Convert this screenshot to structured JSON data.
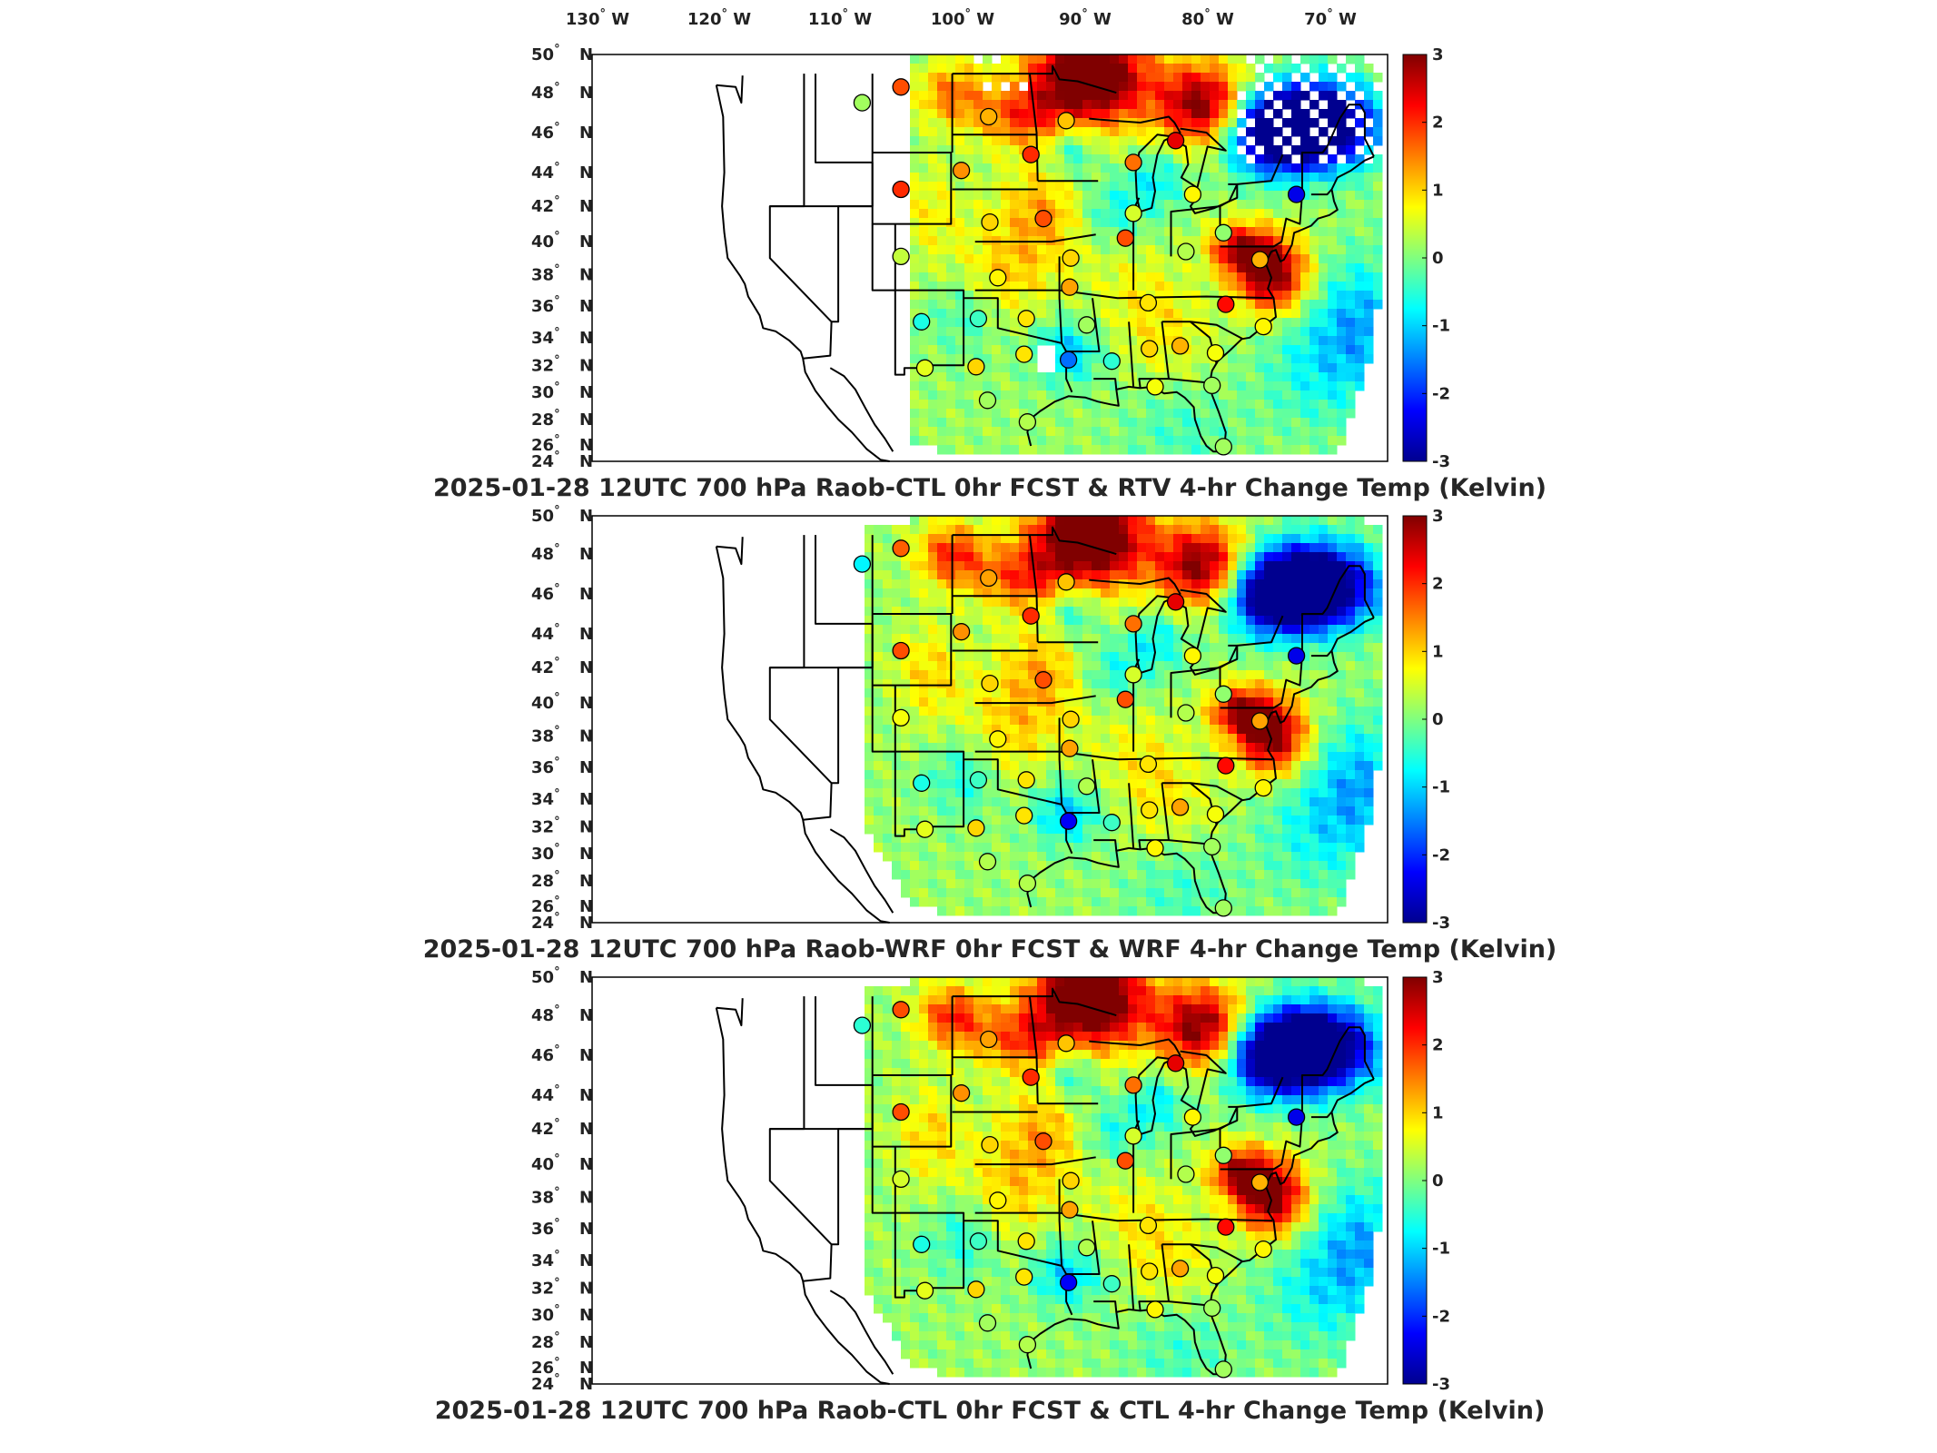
{
  "lon_labels": [
    "130",
    "120",
    "110",
    "100",
    "90",
    "80",
    "70"
  ],
  "lon_hemisphere": "W",
  "lat_labels": [
    "50",
    "48",
    "46",
    "44",
    "42",
    "40",
    "38",
    "36",
    "34",
    "32",
    "30",
    "28",
    "26",
    "24"
  ],
  "lat_hemisphere": "N",
  "degree_symbol": "°",
  "colorbar": {
    "min": -3,
    "max": 3,
    "ticks": [
      "3",
      "2",
      "1",
      "0",
      "-1",
      "-2",
      "-3"
    ],
    "colormap": "jet",
    "colors": [
      "#00008f",
      "#0000ff",
      "#00ffff",
      "#ffff00",
      "#ff0000",
      "#800000"
    ]
  },
  "colors": {
    "coastline": "#000000",
    "frame": "#000000",
    "station_outline": "#000000",
    "missing_data": "#ffffff"
  },
  "panels": [
    {
      "title": "2025-01-28 12UTC 700 hPa Raob-CTL 0hr FCST & RTV 4-hr Change Temp (Kelvin)",
      "field_source": "RTV"
    },
    {
      "title": "2025-01-28 12UTC 700 hPa Raob-WRF 0hr FCST & WRF 4-hr Change Temp (Kelvin)",
      "field_source": "WRF"
    },
    {
      "title": "2025-01-28 12UTC 700 hPa Raob-CTL 0hr FCST & CTL 4-hr Change Temp (Kelvin)",
      "field_source": "CTL"
    }
  ],
  "stations": [
    {
      "lon": -111.9,
      "lat": 47.5,
      "value": [
        0.2,
        -0.8,
        -0.5
      ]
    },
    {
      "lon": -108.5,
      "lat": 48.3,
      "value": [
        1.8,
        1.7,
        1.8
      ]
    },
    {
      "lon": -108.5,
      "lat": 43.0,
      "value": [
        2.0,
        1.8,
        1.8
      ]
    },
    {
      "lon": -108.5,
      "lat": 39.1,
      "value": [
        0.4,
        0.7,
        0.5
      ]
    },
    {
      "lon": -106.7,
      "lat": 35.0,
      "value": [
        -0.6,
        -0.6,
        -0.6
      ]
    },
    {
      "lon": -106.4,
      "lat": 31.8,
      "value": [
        0.6,
        0.6,
        0.6
      ]
    },
    {
      "lon": -100.8,
      "lat": 46.8,
      "value": [
        1.2,
        1.3,
        1.3
      ]
    },
    {
      "lon": -103.2,
      "lat": 44.1,
      "value": [
        1.4,
        1.4,
        1.4
      ]
    },
    {
      "lon": -100.7,
      "lat": 41.1,
      "value": [
        1.0,
        1.0,
        1.0
      ]
    },
    {
      "lon": -100.0,
      "lat": 37.8,
      "value": [
        0.8,
        0.8,
        0.8
      ]
    },
    {
      "lon": -101.7,
      "lat": 35.2,
      "value": [
        -0.4,
        -0.4,
        -0.4
      ]
    },
    {
      "lon": -101.9,
      "lat": 31.9,
      "value": [
        1.0,
        1.0,
        1.0
      ]
    },
    {
      "lon": -97.7,
      "lat": 32.8,
      "value": [
        0.9,
        0.9,
        0.9
      ]
    },
    {
      "lon": -97.5,
      "lat": 35.2,
      "value": [
        0.9,
        0.9,
        0.9
      ]
    },
    {
      "lon": -100.9,
      "lat": 29.4,
      "value": [
        0.2,
        0.3,
        0.2
      ]
    },
    {
      "lon": -97.4,
      "lat": 27.8,
      "value": [
        0.3,
        0.3,
        0.3
      ]
    },
    {
      "lon": -97.1,
      "lat": 44.9,
      "value": [
        2.0,
        2.0,
        2.0
      ]
    },
    {
      "lon": -96.0,
      "lat": 41.3,
      "value": [
        1.8,
        1.8,
        1.8
      ]
    },
    {
      "lon": -94.0,
      "lat": 46.6,
      "value": [
        1.1,
        1.1,
        1.1
      ]
    },
    {
      "lon": -93.6,
      "lat": 39.0,
      "value": [
        1.0,
        1.0,
        1.0
      ]
    },
    {
      "lon": -92.2,
      "lat": 34.8,
      "value": [
        0.2,
        0.3,
        0.3
      ]
    },
    {
      "lon": -93.7,
      "lat": 37.2,
      "value": [
        1.3,
        1.3,
        1.3
      ]
    },
    {
      "lon": -93.8,
      "lat": 32.4,
      "value": [
        -1.6,
        -2.3,
        -2.3
      ]
    },
    {
      "lon": -90.0,
      "lat": 32.3,
      "value": [
        -0.5,
        -0.4,
        -0.4
      ]
    },
    {
      "lon": -88.1,
      "lat": 41.6,
      "value": [
        0.5,
        0.5,
        0.5
      ]
    },
    {
      "lon": -88.8,
      "lat": 40.2,
      "value": [
        1.8,
        1.8,
        1.8
      ]
    },
    {
      "lon": -88.1,
      "lat": 44.5,
      "value": [
        1.6,
        1.6,
        1.6
      ]
    },
    {
      "lon": -86.8,
      "lat": 36.2,
      "value": [
        0.9,
        0.9,
        0.9
      ]
    },
    {
      "lon": -86.7,
      "lat": 33.2,
      "value": [
        1.0,
        0.9,
        0.9
      ]
    },
    {
      "lon": -86.2,
      "lat": 30.4,
      "value": [
        0.7,
        0.8,
        0.8
      ]
    },
    {
      "lon": -84.0,
      "lat": 33.4,
      "value": [
        1.2,
        1.3,
        1.3
      ]
    },
    {
      "lon": -83.5,
      "lat": 39.4,
      "value": [
        0.3,
        0.3,
        0.3
      ]
    },
    {
      "lon": -84.4,
      "lat": 45.6,
      "value": [
        2.4,
        2.4,
        2.4
      ]
    },
    {
      "lon": -82.9,
      "lat": 42.7,
      "value": [
        0.8,
        0.8,
        0.8
      ]
    },
    {
      "lon": -81.2,
      "lat": 30.5,
      "value": [
        0.2,
        0.2,
        0.2
      ]
    },
    {
      "lon": -80.2,
      "lat": 25.8,
      "value": [
        0.2,
        0.2,
        0.2
      ]
    },
    {
      "lon": -80.0,
      "lat": 36.1,
      "value": [
        2.2,
        2.2,
        2.2
      ]
    },
    {
      "lon": -80.9,
      "lat": 32.9,
      "value": [
        0.7,
        0.7,
        0.7
      ]
    },
    {
      "lon": -77.0,
      "lat": 38.9,
      "value": [
        1.2,
        1.3,
        1.2
      ]
    },
    {
      "lon": -76.7,
      "lat": 34.7,
      "value": [
        0.8,
        0.8,
        0.8
      ]
    },
    {
      "lon": -80.2,
      "lat": 40.5,
      "value": [
        0.1,
        0.1,
        0.1
      ]
    },
    {
      "lon": -73.8,
      "lat": 42.7,
      "value": [
        -2.4,
        -2.4,
        -2.4
      ]
    }
  ]
}
